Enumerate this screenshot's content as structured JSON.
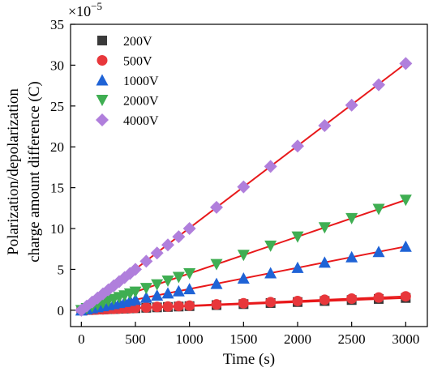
{
  "chart_data": {
    "type": "scatter",
    "xlabel": "Time (s)",
    "ylabel_line1": "Polarization/depolarization",
    "ylabel_line2": "charge amount difference (C)",
    "y_multiplier": "×10",
    "y_multiplier_exp": "−5",
    "xlim": [
      -100,
      3200
    ],
    "ylim": [
      -2,
      35
    ],
    "xticks": [
      0,
      500,
      1000,
      1500,
      2000,
      2500,
      3000
    ],
    "yticks": [
      0,
      5,
      10,
      15,
      20,
      25,
      30,
      35
    ],
    "grid": false,
    "legend_position": "top-left",
    "fit_line_color": "#e8191b",
    "x": [
      0,
      50,
      100,
      150,
      200,
      250,
      300,
      350,
      400,
      450,
      500,
      600,
      700,
      800,
      900,
      1000,
      1250,
      1500,
      1750,
      2000,
      2250,
      2500,
      2750,
      3000
    ],
    "series": [
      {
        "name": "200V",
        "marker": "square",
        "color": "#3a3a3a",
        "values": [
          0,
          0.03,
          0.05,
          0.08,
          0.1,
          0.13,
          0.15,
          0.18,
          0.2,
          0.23,
          0.25,
          0.3,
          0.35,
          0.4,
          0.45,
          0.5,
          0.63,
          0.75,
          0.88,
          1.0,
          1.13,
          1.25,
          1.38,
          1.5
        ],
        "fit": [
          0,
          1.5
        ]
      },
      {
        "name": "500V",
        "marker": "circle",
        "color": "#e8373b",
        "values": [
          0,
          0.03,
          0.06,
          0.09,
          0.11,
          0.14,
          0.17,
          0.2,
          0.23,
          0.26,
          0.28,
          0.34,
          0.4,
          0.45,
          0.51,
          0.57,
          0.71,
          0.85,
          0.99,
          1.13,
          1.28,
          1.42,
          1.56,
          1.7
        ],
        "fit": [
          0,
          1.7
        ]
      },
      {
        "name": "1000V",
        "marker": "triangle-up",
        "color": "#1f63d6",
        "values": [
          0,
          0.13,
          0.26,
          0.39,
          0.52,
          0.65,
          0.78,
          0.91,
          1.04,
          1.17,
          1.3,
          1.56,
          1.82,
          2.08,
          2.34,
          2.6,
          3.25,
          3.9,
          4.55,
          5.2,
          5.85,
          6.5,
          7.15,
          7.8
        ],
        "fit": [
          0,
          7.8
        ]
      },
      {
        "name": "2000V",
        "marker": "triangle-down",
        "color": "#3fae52",
        "values": [
          0,
          0.23,
          0.45,
          0.68,
          0.9,
          1.13,
          1.35,
          1.58,
          1.8,
          2.03,
          2.25,
          2.7,
          3.15,
          3.6,
          4.05,
          4.5,
          5.63,
          6.75,
          7.88,
          9.0,
          10.13,
          11.25,
          12.38,
          13.5
        ],
        "fit": [
          0,
          13.5
        ]
      },
      {
        "name": "4000V",
        "marker": "diamond",
        "color": "#b07fdc",
        "values": [
          0,
          0.5,
          1.0,
          1.5,
          2.0,
          2.5,
          3.0,
          3.5,
          4.0,
          4.5,
          5.0,
          6.0,
          7.0,
          8.0,
          9.0,
          10.0,
          12.6,
          15.1,
          17.6,
          20.1,
          22.6,
          25.1,
          27.6,
          30.2
        ],
        "fit": [
          0,
          30.2
        ]
      }
    ]
  }
}
